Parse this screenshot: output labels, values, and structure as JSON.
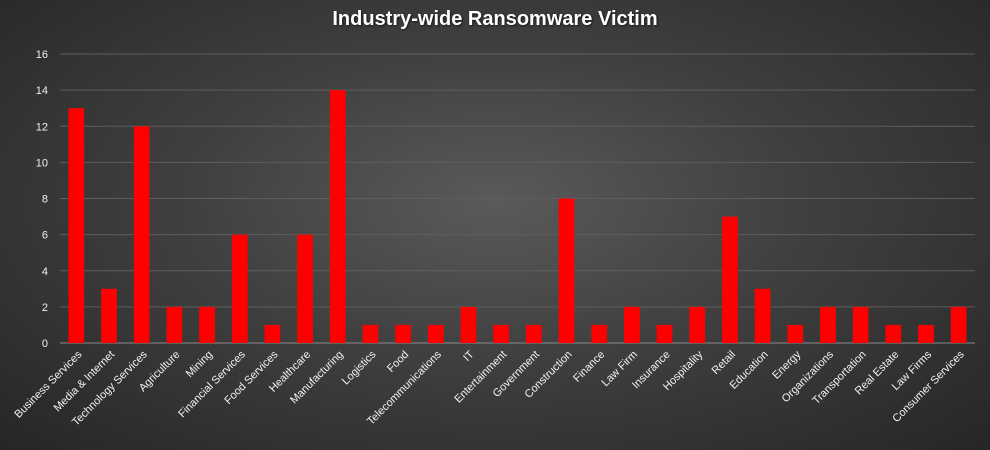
{
  "chart_data": {
    "type": "bar",
    "title": "Industry-wide Ransomware Victim",
    "xlabel": "",
    "ylabel": "",
    "ylim": [
      0,
      16
    ],
    "yticks": [
      0,
      2,
      4,
      6,
      8,
      10,
      12,
      14,
      16
    ],
    "grid": true,
    "legend": "none",
    "bar_color": "#ff0000",
    "categories": [
      "Business Services",
      "Media & Internet",
      "Technology Services",
      "Agriculture",
      "Mining",
      "Financial Services",
      "Food Services",
      "Healthcare",
      "Manufacturing",
      "Logistics",
      "Food",
      "Telecommunications",
      "IT",
      "Entertainment",
      "Government",
      "Construction",
      "Finance",
      "Law Firm",
      "Insurance",
      "Hospitality",
      "Retail",
      "Education",
      "Energy",
      "Organizations",
      "Transportation",
      "Real Estate",
      "Law Firms",
      "Consumer Services"
    ],
    "values": [
      13,
      3,
      12,
      2,
      2,
      6,
      1,
      6,
      14,
      1,
      1,
      1,
      2,
      1,
      1,
      8,
      1,
      2,
      1,
      2,
      7,
      3,
      1,
      2,
      2,
      1,
      1,
      2
    ]
  }
}
